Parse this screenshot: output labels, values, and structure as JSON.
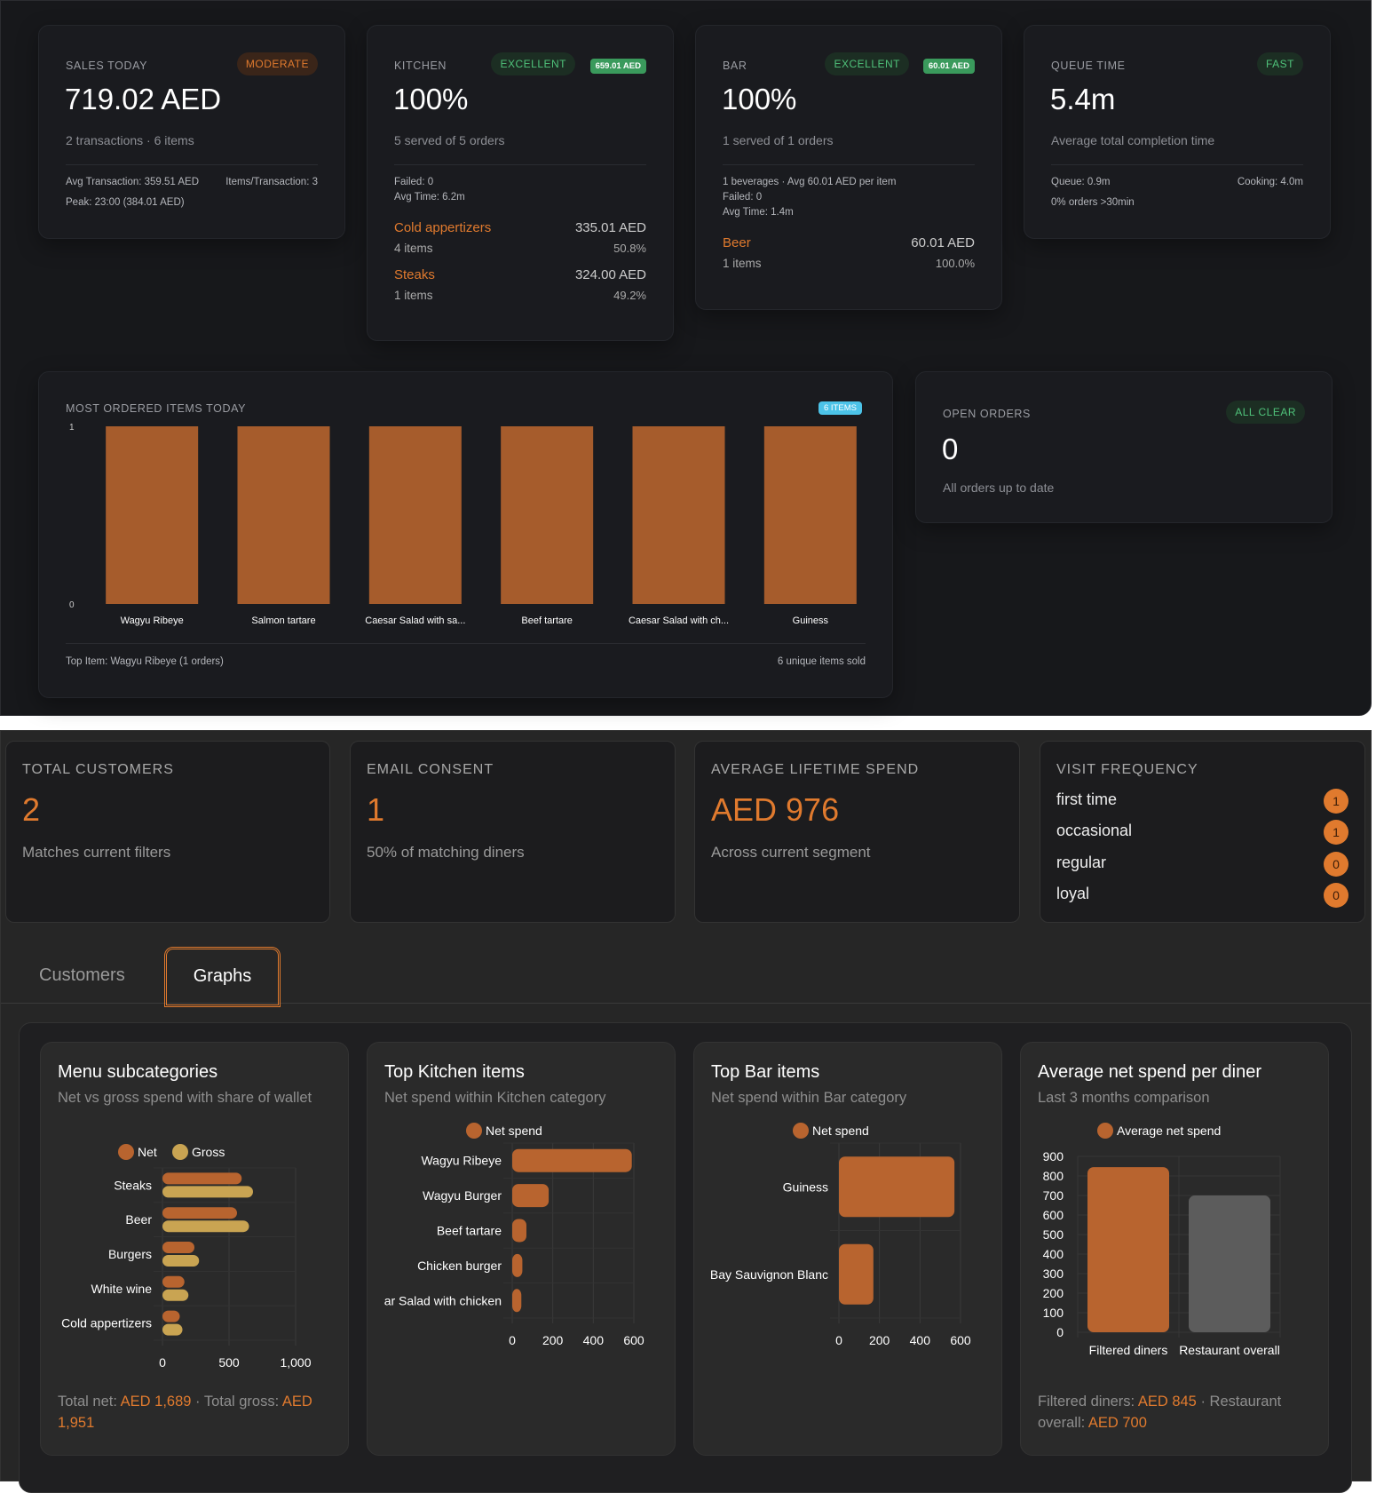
{
  "sales": {
    "label": "SALES TODAY",
    "badge": "MODERATE",
    "value": "719.02 AED",
    "sub": "2 transactions · 6 items",
    "avg": "Avg Transaction: 359.51 AED",
    "ipt": "Items/Transaction: 3",
    "peak": "Peak: 23:00 (384.01 AED)"
  },
  "kitchen": {
    "label": "KITCHEN",
    "badge": "EXCELLENT",
    "chip": "659.01 AED",
    "value": "100%",
    "sub": "5 served of 5 orders",
    "failed": "Failed: 0",
    "avg_time": "Avg Time: 6.2m",
    "categories": [
      {
        "name": "Cold appertizers",
        "amount": "335.01 AED",
        "items": "4 items",
        "share": "50.8%"
      },
      {
        "name": "Steaks",
        "amount": "324.00 AED",
        "items": "1 items",
        "share": "49.2%"
      }
    ]
  },
  "bar": {
    "label": "BAR",
    "badge": "EXCELLENT",
    "chip": "60.01 AED",
    "value": "100%",
    "sub": "1 served of 1 orders",
    "bev": "1 beverages · Avg 60.01 AED per item",
    "failed": "Failed: 0",
    "avg_time": "Avg Time: 1.4m",
    "categories": [
      {
        "name": "Beer",
        "amount": "60.01 AED",
        "items": "1 items",
        "share": "100.0%"
      }
    ]
  },
  "queue": {
    "label": "QUEUE TIME",
    "badge": "FAST",
    "value": "5.4m",
    "sub": "Average total completion time",
    "queue": "Queue: 0.9m",
    "cooking": "Cooking: 4.0m",
    "over": "0% orders >30min"
  },
  "most_ordered": {
    "title": "MOST ORDERED ITEMS TODAY",
    "badge": "6 ITEMS",
    "top_item": "Top Item: Wagyu Ribeye (1 orders)",
    "unique": "6 unique items sold"
  },
  "open_orders": {
    "label": "OPEN ORDERS",
    "badge": "ALL CLEAR",
    "value": "0",
    "sub": "All orders up to date"
  },
  "kpis": [
    {
      "title": "TOTAL CUSTOMERS",
      "value": "2",
      "sub": "Matches current filters"
    },
    {
      "title": "EMAIL CONSENT",
      "value": "1",
      "sub": "50% of matching diners"
    },
    {
      "title": "AVERAGE LIFETIME SPEND",
      "value": "AED 976",
      "sub": "Across current segment"
    }
  ],
  "visit_frequency": {
    "title": "VISIT FREQUENCY",
    "items": [
      {
        "label": "first time",
        "count": "1"
      },
      {
        "label": "occasional",
        "count": "1"
      },
      {
        "label": "regular",
        "count": "0"
      },
      {
        "label": "loyal",
        "count": "0"
      }
    ]
  },
  "tabs": [
    {
      "label": "Customers",
      "active": false
    },
    {
      "label": "Graphs",
      "active": true
    }
  ],
  "graphs": {
    "menu": {
      "title": "Menu subcategories",
      "subtitle": "Net vs gross spend with share of wallet",
      "foot_a": "Total net: ",
      "foot_b": "AED 1,689",
      "foot_c": " · Total gross: ",
      "foot_d": "AED 1,951"
    },
    "kitchen": {
      "title": "Top Kitchen items",
      "subtitle": "Net spend within Kitchen category"
    },
    "bar": {
      "title": "Top Bar items",
      "subtitle": "Net spend within Bar category"
    },
    "avg": {
      "title": "Average net spend per diner",
      "subtitle": "Last 3 months comparison",
      "foot_a": "Filtered diners: ",
      "foot_b": "AED 845",
      "foot_c": " · Restaurant overall: ",
      "foot_d": "AED 700"
    }
  },
  "colors": {
    "accent": "#e07a2e",
    "bar": "#a65c2c",
    "net": "#b8642f",
    "gross": "#c9a452",
    "overall": "#5c5c5c",
    "good": "#4fc27a",
    "info": "#4cc3e8"
  },
  "chart_data": [
    {
      "type": "bar",
      "id": "most_ordered",
      "categories": [
        "Wagyu Ribeye",
        "Salmon tartare",
        "Caesar Salad with sa...",
        "Beef tartare",
        "Caesar Salad with ch...",
        "Guiness"
      ],
      "values": [
        1,
        1,
        1,
        1,
        1,
        1
      ],
      "ylim": [
        0,
        1
      ],
      "yticks": [
        "0",
        "1"
      ]
    },
    {
      "type": "bar",
      "id": "menu",
      "orientation": "horizontal",
      "categories": [
        "Steaks",
        "Beer",
        "Burgers",
        "White wine",
        "Cold appertizers"
      ],
      "series": [
        {
          "name": "Net",
          "values": [
            595,
            560,
            240,
            165,
            130
          ]
        },
        {
          "name": "Gross",
          "values": [
            680,
            650,
            275,
            195,
            150
          ]
        }
      ],
      "xlim": [
        0,
        1000
      ],
      "xticks": [
        "0",
        "500",
        "1,000"
      ],
      "grid": true,
      "legend": "top"
    },
    {
      "type": "bar",
      "id": "kitchen",
      "orientation": "horizontal",
      "categories": [
        "Wagyu Ribeye",
        "Wagyu Burger",
        "Beef tartare",
        "Chicken burger",
        "ar Salad with chicken"
      ],
      "series": [
        {
          "name": "Net spend",
          "values": [
            590,
            180,
            70,
            50,
            45
          ]
        }
      ],
      "xlim": [
        0,
        600
      ],
      "xticks": [
        "0",
        "200",
        "400",
        "600"
      ],
      "grid": true,
      "legend": "top"
    },
    {
      "type": "bar",
      "id": "bar",
      "orientation": "horizontal",
      "categories": [
        "Guiness",
        "Bay Sauvignon Blanc"
      ],
      "series": [
        {
          "name": "Net spend",
          "values": [
            570,
            170
          ]
        }
      ],
      "xlim": [
        0,
        600
      ],
      "xticks": [
        "0",
        "200",
        "400",
        "600"
      ],
      "grid": true,
      "legend": "top"
    },
    {
      "type": "bar",
      "id": "avg",
      "categories": [
        "Filtered diners",
        "Restaurant overall"
      ],
      "series": [
        {
          "name": "Average net spend",
          "values": [
            845,
            700
          ]
        }
      ],
      "ylim": [
        0,
        900
      ],
      "yticks": [
        "0",
        "100",
        "200",
        "300",
        "400",
        "500",
        "600",
        "700",
        "800",
        "900"
      ],
      "grid": true,
      "legend": "top"
    }
  ]
}
